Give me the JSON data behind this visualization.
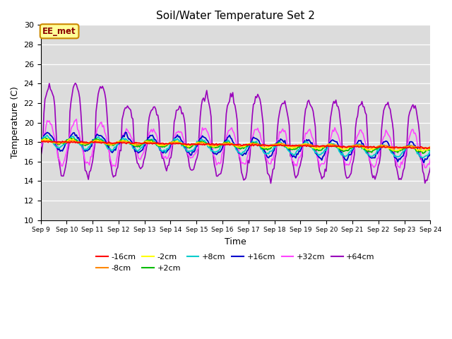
{
  "title": "Soil/Water Temperature Set 2",
  "xlabel": "Time",
  "ylabel": "Temperature (C)",
  "ylim": [
    10,
    30
  ],
  "yticks": [
    10,
    12,
    14,
    16,
    18,
    20,
    22,
    24,
    26,
    28,
    30
  ],
  "x_labels": [
    "Sep 9",
    "Sep 10",
    "Sep 11",
    "Sep 12",
    "Sep 13",
    "Sep 14",
    "Sep 15",
    "Sep 16",
    "Sep 17",
    "Sep 18",
    "Sep 19",
    "Sep 20",
    "Sep 21",
    "Sep 22",
    "Sep 23",
    "Sep 24"
  ],
  "background_color": "#dcdcdc",
  "series_colors": {
    "-16cm": "#ff0000",
    "-8cm": "#ff8800",
    "-2cm": "#ffff00",
    "+2cm": "#00bb00",
    "+8cm": "#00cccc",
    "+16cm": "#0000cc",
    "+32cm": "#ff44ff",
    "+64cm": "#9900bb"
  },
  "annotation_text": "EE_met",
  "annotation_bg": "#ffff99",
  "annotation_border": "#cc8800"
}
